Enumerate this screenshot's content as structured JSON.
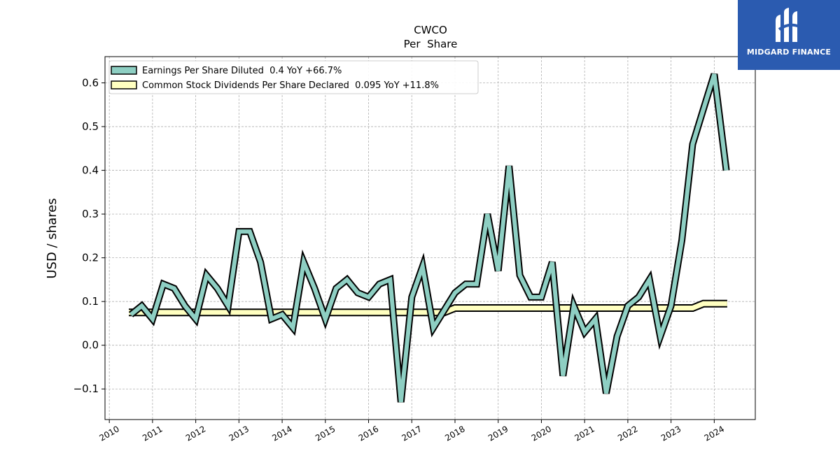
{
  "chart_data": {
    "type": "line",
    "title": "CWCO",
    "subtitle": "Per  Share",
    "ylabel": "USD / shares",
    "ylim": [
      -0.17,
      0.66
    ],
    "xlim": [
      2009.9,
      2024.95
    ],
    "yticks": [
      -0.1,
      0.0,
      0.1,
      0.2,
      0.3,
      0.4,
      0.5,
      0.6
    ],
    "ytick_labels": [
      "−0.1",
      "0.0",
      "0.1",
      "0.2",
      "0.3",
      "0.4",
      "0.5",
      "0.6"
    ],
    "xticks": [
      2010,
      2011,
      2012,
      2013,
      2014,
      2015,
      2016,
      2017,
      2018,
      2019,
      2020,
      2021,
      2022,
      2023,
      2024
    ],
    "xtick_labels": [
      "2010",
      "2011",
      "2012",
      "2013",
      "2014",
      "2015",
      "2016",
      "2017",
      "2018",
      "2019",
      "2020",
      "2021",
      "2022",
      "2023",
      "2024"
    ],
    "grid": true,
    "legend_position": "top-left",
    "series": [
      {
        "name": "Earnings Per Share Diluted",
        "legend_label": "Earnings Per Share Diluted  0.4 YoY +66.7%",
        "color": "#8ecfc3",
        "points": [
          [
            2010.5,
            0.07
          ],
          [
            2010.75,
            0.09
          ],
          [
            2011.0,
            0.06
          ],
          [
            2011.25,
            0.14
          ],
          [
            2011.5,
            0.13
          ],
          [
            2011.75,
            0.09
          ],
          [
            2012.0,
            0.06
          ],
          [
            2012.25,
            0.16
          ],
          [
            2012.5,
            0.13
          ],
          [
            2012.75,
            0.09
          ],
          [
            2013.0,
            0.26
          ],
          [
            2013.25,
            0.26
          ],
          [
            2013.5,
            0.19
          ],
          [
            2013.75,
            0.06
          ],
          [
            2014.0,
            0.07
          ],
          [
            2014.25,
            0.04
          ],
          [
            2014.5,
            0.19
          ],
          [
            2014.75,
            0.13
          ],
          [
            2015.0,
            0.06
          ],
          [
            2015.25,
            0.13
          ],
          [
            2015.5,
            0.15
          ],
          [
            2015.75,
            0.12
          ],
          [
            2016.0,
            0.11
          ],
          [
            2016.25,
            0.14
          ],
          [
            2016.5,
            0.15
          ],
          [
            2016.75,
            -0.13
          ],
          [
            2017.0,
            0.11
          ],
          [
            2017.25,
            0.18
          ],
          [
            2017.5,
            0.04
          ],
          [
            2017.75,
            0.08
          ],
          [
            2018.0,
            0.12
          ],
          [
            2018.25,
            0.14
          ],
          [
            2018.5,
            0.14
          ],
          [
            2018.75,
            0.3
          ],
          [
            2019.0,
            0.17
          ],
          [
            2019.25,
            0.41
          ],
          [
            2019.5,
            0.16
          ],
          [
            2019.75,
            0.11
          ],
          [
            2020.0,
            0.11
          ],
          [
            2020.25,
            0.19
          ],
          [
            2020.5,
            -0.07
          ],
          [
            2020.75,
            0.09
          ],
          [
            2021.0,
            0.03
          ],
          [
            2021.25,
            0.06
          ],
          [
            2021.5,
            -0.11
          ],
          [
            2021.75,
            0.02
          ],
          [
            2022.0,
            0.09
          ],
          [
            2022.25,
            0.11
          ],
          [
            2022.5,
            0.15
          ],
          [
            2022.75,
            0.02
          ],
          [
            2023.0,
            0.09
          ],
          [
            2023.25,
            0.24
          ],
          [
            2023.5,
            0.46
          ],
          [
            2023.75,
            0.54
          ],
          [
            2024.0,
            0.62
          ],
          [
            2024.28,
            0.4
          ]
        ]
      },
      {
        "name": "Common Stock Dividends Per Share Declared",
        "legend_label": "Common Stock Dividends Per Share Declared  0.095 YoY +11.8%",
        "color": "#ffffc0",
        "points": [
          [
            2010.45,
            0.075
          ],
          [
            2017.75,
            0.075
          ],
          [
            2018.0,
            0.085
          ],
          [
            2023.5,
            0.085
          ],
          [
            2023.75,
            0.095
          ],
          [
            2024.3,
            0.095
          ]
        ]
      }
    ]
  },
  "logo": {
    "text": "MIDGARD FINANCE",
    "color": "#2b5bb0"
  }
}
